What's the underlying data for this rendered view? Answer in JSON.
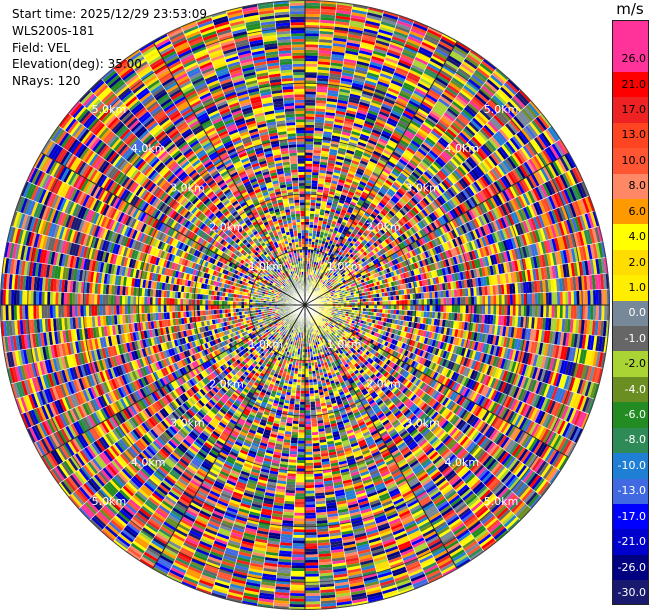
{
  "meta": {
    "start_time": "Start time: 2025/12/29 23:53:09",
    "instrument": "WLS200s-181",
    "field": "Field: VEL",
    "elevation": "Elevation(deg): 35.00",
    "nrays": "NRays: 120"
  },
  "colorbar": {
    "unit": "m/s",
    "levels": [
      {
        "label": "",
        "color": "#ff3399"
      },
      {
        "label": "26.0",
        "color": "#ff3399"
      },
      {
        "label": "21.0",
        "color": "#ff0000"
      },
      {
        "label": "17.0",
        "color": "#ee2222"
      },
      {
        "label": "13.0",
        "color": "#ff4422"
      },
      {
        "label": "10.0",
        "color": "#ff5533"
      },
      {
        "label": "8.0",
        "color": "#ff8866"
      },
      {
        "label": "6.0",
        "color": "#ff9900"
      },
      {
        "label": "4.0",
        "color": "#ffff00"
      },
      {
        "label": "2.0",
        "color": "#ffdd00"
      },
      {
        "label": "1.0",
        "color": "#ffee00"
      },
      {
        "label": "0.0",
        "color": "#778899"
      },
      {
        "label": "-1.0",
        "color": "#666666"
      },
      {
        "label": "-2.0",
        "color": "#aad433"
      },
      {
        "label": "-4.0",
        "color": "#6b8e23"
      },
      {
        "label": "-6.0",
        "color": "#228b22"
      },
      {
        "label": "-8.0",
        "color": "#2e8b57"
      },
      {
        "label": "-10.0",
        "color": "#1e7fd4"
      },
      {
        "label": "-13.0",
        "color": "#4169e1"
      },
      {
        "label": "-17.0",
        "color": "#0000ff"
      },
      {
        "label": "-21.0",
        "color": "#0000cd"
      },
      {
        "label": "-26.0",
        "color": "#000080"
      },
      {
        "label": "-30.0",
        "color": "#191970"
      }
    ]
  },
  "chart_data": {
    "type": "heatmap",
    "plot_kind": "PPI (polar)",
    "field": "VEL",
    "unit": "m/s",
    "n_rays": 120,
    "elevation_deg": 35.0,
    "range_rings_km": [
      1.0,
      2.0,
      3.0,
      4.0,
      5.0
    ],
    "range_ring_labels": [
      "1.0km",
      "2.0km",
      "3.0km",
      "4.0km",
      "5.0km"
    ],
    "max_range_km": 5.5,
    "color_scale_min": -30.0,
    "color_scale_max": 26.0,
    "near_range_pattern": "mostly gray/olive near 0 m/s at center, yellow band (~2-4 m/s) to the east within ~0.5 km",
    "far_range_pattern": "random-looking speckled noise across the full color range beyond ~1 km"
  }
}
